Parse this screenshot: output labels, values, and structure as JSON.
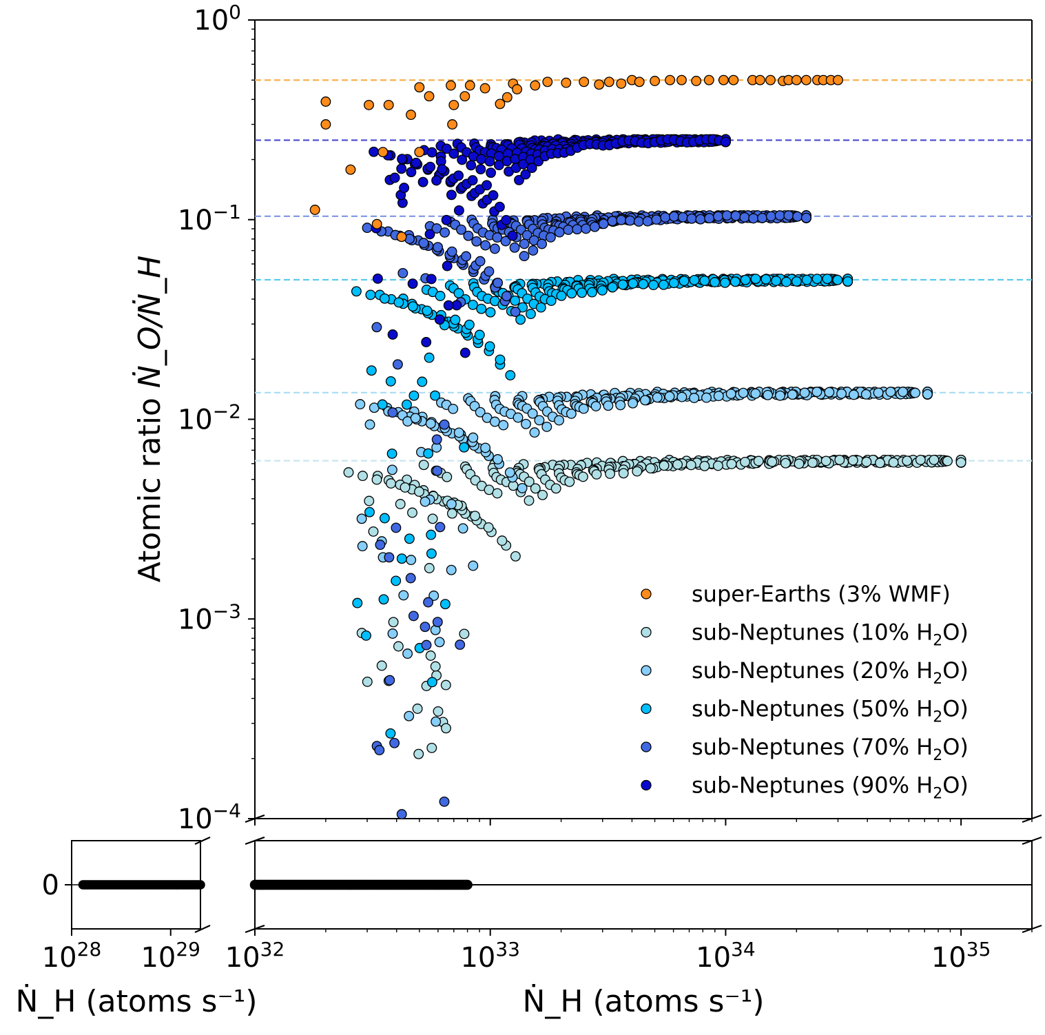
{
  "chart_data": {
    "type": "scatter",
    "x_scale": "log",
    "y_scale": "log",
    "main_xlim": [
      1e+32,
      2e+35
    ],
    "main_ylim": [
      0.0001,
      1
    ],
    "inset_xlim": [
      1e+28,
      2e+29
    ],
    "ylabel": "Atomic ratio",
    "ylabel_ratio": "Ṅ_O/Ṅ_H",
    "xlabel_main": "Ṅ_H (atoms s⁻¹)",
    "xlabel_inset": "Ṅ_H (atoms s⁻¹)",
    "x_tick_labels_main": [
      "10^32",
      "10^33",
      "10^34",
      "10^35"
    ],
    "x_tick_labels_inset": [
      "10^28",
      "10^29"
    ],
    "y_tick_labels": [
      "10^0",
      "10^-1",
      "10^-2",
      "10^-3",
      "10^-4"
    ],
    "bottom_y_tick_label": "0",
    "reference_lines": [
      {
        "series": "super-Earths (3% WMF)",
        "y": 0.5
      },
      {
        "series": "sub-Neptunes (90% H2O)",
        "y": 0.25
      },
      {
        "series": "sub-Neptunes (70% H2O)",
        "y": 0.104
      },
      {
        "series": "sub-Neptunes (50% H2O)",
        "y": 0.05
      },
      {
        "series": "sub-Neptunes (20% H2O)",
        "y": 0.0136
      },
      {
        "series": "sub-Neptunes (10% H2O)",
        "y": 0.0062
      }
    ],
    "series": [
      {
        "name": "super-Earths (3% WMF)",
        "color": "#ff8c1a",
        "line_color": "#f7b04c",
        "asymptote": 0.5,
        "points": [
          [
            1.8e+32,
            0.112
          ],
          [
            2e+32,
            0.39
          ],
          [
            2e+32,
            0.3
          ],
          [
            2.55e+32,
            0.178
          ],
          [
            3.05e+32,
            0.375
          ],
          [
            3.3e+32,
            0.095
          ],
          [
            3.5e+32,
            0.218
          ],
          [
            3.7e+32,
            0.375
          ],
          [
            4.2e+32,
            0.082
          ],
          [
            4.6e+32,
            0.335
          ],
          [
            5e+32,
            0.46
          ],
          [
            5e+32,
            0.218
          ],
          [
            5.5e+32,
            0.415
          ],
          [
            6.8e+32,
            0.47
          ],
          [
            6.9e+32,
            0.3
          ],
          [
            7e+32,
            0.375
          ],
          [
            7.8e+32,
            0.415
          ],
          [
            8.2e+32,
            0.47
          ],
          [
            9.5e+32,
            0.455
          ],
          [
            1.1e+33,
            0.38
          ],
          [
            1.18e+33,
            0.41
          ],
          [
            1.25e+33,
            0.48
          ],
          [
            1.3e+33,
            0.45
          ],
          [
            1.55e+33,
            0.47
          ],
          [
            1.75e+33,
            0.49
          ],
          [
            2.1e+33,
            0.485
          ],
          [
            2.5e+33,
            0.49
          ],
          [
            2.9e+33,
            0.475
          ],
          [
            3.2e+33,
            0.49
          ],
          [
            3.6e+33,
            0.48
          ],
          [
            4e+33,
            0.5
          ],
          [
            4.3e+33,
            0.49
          ],
          [
            5e+33,
            0.495
          ],
          [
            5.8e+33,
            0.5
          ],
          [
            6.5e+33,
            0.5
          ],
          [
            7.5e+33,
            0.495
          ],
          [
            8.5e+33,
            0.5
          ],
          [
            9.8e+33,
            0.5
          ],
          [
            1.08e+34,
            0.5
          ],
          [
            1.3e+34,
            0.5
          ],
          [
            1.4e+34,
            0.5
          ],
          [
            1.55e+34,
            0.5
          ],
          [
            1.75e+34,
            0.495
          ],
          [
            1.85e+34,
            0.5
          ],
          [
            2e+34,
            0.5
          ],
          [
            2.2e+34,
            0.5
          ],
          [
            2.45e+34,
            0.5
          ],
          [
            2.6e+34,
            0.5
          ],
          [
            2.8e+34,
            0.5
          ],
          [
            3e+34,
            0.5
          ]
        ]
      },
      {
        "name": "sub-Neptunes (10% H2O)",
        "color": "#b0e0e6",
        "line_color": "#c8e6ee",
        "asymptote": 0.0062,
        "points": []
      },
      {
        "name": "sub-Neptunes (20% H2O)",
        "color": "#87cefa",
        "line_color": "#a6dcf2",
        "asymptote": 0.0136,
        "points": []
      },
      {
        "name": "sub-Neptunes (50% H2O)",
        "color": "#00bfff",
        "line_color": "#5cc9ec",
        "asymptote": 0.05,
        "points": []
      },
      {
        "name": "sub-Neptunes (70% H2O)",
        "color": "#4169e1",
        "line_color": "#7f95e6",
        "asymptote": 0.104,
        "points": []
      },
      {
        "name": "sub-Neptunes (90% H2O)",
        "color": "#0a0acd",
        "line_color": "#4848cc",
        "asymptote": 0.25,
        "points": []
      }
    ],
    "zero_outflow_points": {
      "description": "Ṅ_O = 0 (ratio exactly 0)",
      "main_x_range": [
        1e+32,
        8e+32
      ],
      "inset_x_range": [
        1.3e+28,
        2e+29
      ],
      "color": "#000000"
    },
    "legend": {
      "placement": "lower-right",
      "entries": [
        {
          "label": "super-Earths (3% WMF)",
          "color": "#ff8c1a"
        },
        {
          "label": "sub-Neptunes (10% H",
          "sub": "2",
          "suffix": "O)",
          "color": "#b0e0e6"
        },
        {
          "label": "sub-Neptunes (20% H",
          "sub": "2",
          "suffix": "O)",
          "color": "#87cefa"
        },
        {
          "label": "sub-Neptunes (50% H",
          "sub": "2",
          "suffix": "O)",
          "color": "#00bfff"
        },
        {
          "label": "sub-Neptunes (70% H",
          "sub": "2",
          "suffix": "O)",
          "color": "#4169e1"
        },
        {
          "label": "sub-Neptunes (90% H",
          "sub": "2",
          "suffix": "O)",
          "color": "#0a0acd"
        }
      ]
    }
  }
}
